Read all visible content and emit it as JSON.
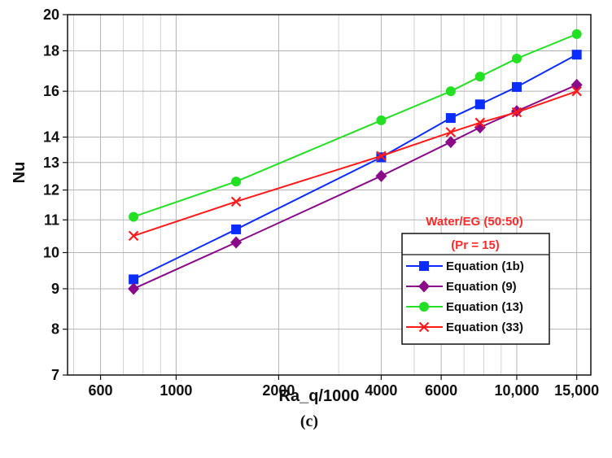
{
  "caption": "(c)",
  "chart_data": {
    "type": "line",
    "title": "",
    "xlabel": "Ra_q/1000",
    "ylabel": "Nu",
    "xscale": "log",
    "yscale": "log",
    "xlim": [
      480,
      16500
    ],
    "ylim": [
      7,
      20
    ],
    "x_ticks": [
      600,
      1000,
      2000,
      4000,
      6000,
      10000,
      15000
    ],
    "x_tick_labels": [
      "600",
      "1000",
      "2000",
      "4000",
      "6000",
      "10,000",
      "15,000"
    ],
    "y_ticks": [
      7,
      8,
      9,
      10,
      11,
      12,
      13,
      14,
      16,
      18,
      20
    ],
    "y_tick_labels": [
      "7",
      "8",
      "9",
      "10",
      "11",
      "12",
      "13",
      "14",
      "16",
      "18",
      "20"
    ],
    "grid": true,
    "legend": {
      "position": "bottom-right",
      "title_lines": [
        "Water/EG (50:50)",
        "(Pr = 15)"
      ]
    },
    "series": [
      {
        "name": "Equation (1b)",
        "color": "#0a2cff",
        "marker": "square",
        "x": [
          750,
          1500,
          4000,
          6400,
          7800,
          10000,
          15000
        ],
        "y": [
          9.25,
          10.7,
          13.2,
          14.8,
          15.4,
          16.2,
          17.8
        ]
      },
      {
        "name": "Equation (9)",
        "color": "#8a0a8a",
        "marker": "diamond",
        "x": [
          750,
          1500,
          4000,
          6400,
          7800,
          10000,
          15000
        ],
        "y": [
          9.0,
          10.3,
          12.5,
          13.8,
          14.4,
          15.1,
          16.3
        ]
      },
      {
        "name": "Equation (13)",
        "color": "#22e022",
        "marker": "circle",
        "x": [
          750,
          1500,
          4000,
          6400,
          7800,
          10000,
          15000
        ],
        "y": [
          11.1,
          12.3,
          14.7,
          16.0,
          16.7,
          17.6,
          18.9
        ]
      },
      {
        "name": "Equation (33)",
        "color": "#ff1a1a",
        "marker": "x",
        "x": [
          750,
          1500,
          4000,
          6400,
          7800,
          10000,
          15000
        ],
        "y": [
          10.5,
          11.6,
          13.25,
          14.2,
          14.6,
          15.05,
          16.0
        ]
      }
    ]
  }
}
